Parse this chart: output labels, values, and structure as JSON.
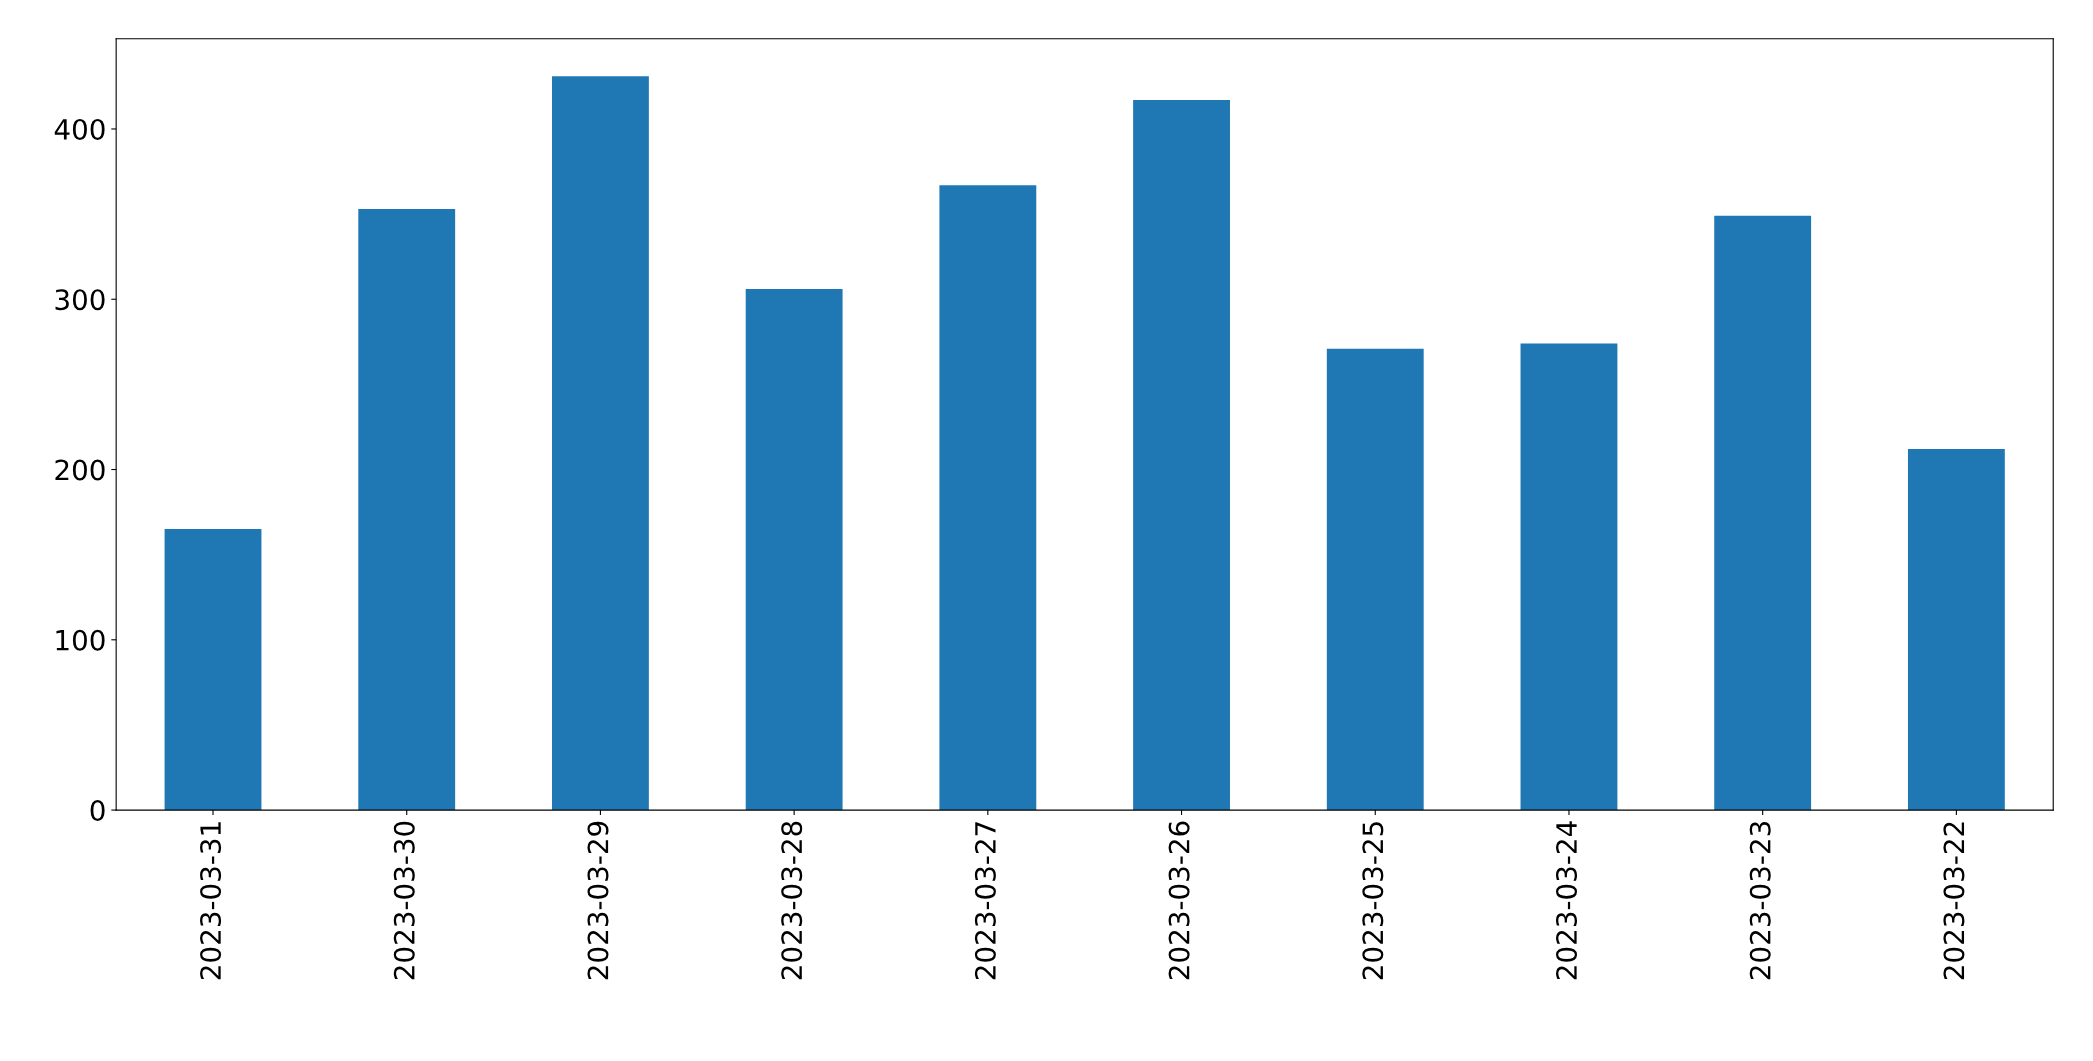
{
  "chart_data": {
    "type": "bar",
    "categories": [
      "2023-03-31",
      "2023-03-30",
      "2023-03-29",
      "2023-03-28",
      "2023-03-27",
      "2023-03-26",
      "2023-03-25",
      "2023-03-24",
      "2023-03-23",
      "2023-03-22"
    ],
    "values": [
      165,
      353,
      431,
      306,
      367,
      417,
      271,
      274,
      349,
      212
    ],
    "color": "#1f77b4",
    "ylim": [
      0,
      453
    ],
    "yticks": [
      0,
      100,
      200,
      300,
      400
    ],
    "grid": false,
    "legend": false
  }
}
